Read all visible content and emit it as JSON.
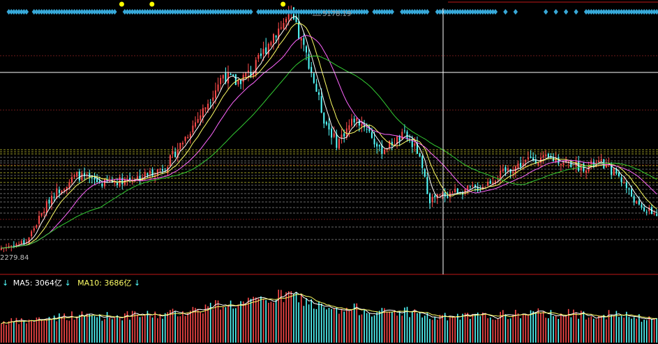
{
  "chart_data": {
    "type": "candlestick",
    "price_high_label": "5178.19",
    "price_low_label": "2279.84",
    "volume_legend": [
      {
        "label": "MA5: 3064亿",
        "color": "#ffffff"
      },
      {
        "label": "MA10: 3686亿",
        "color": "#ffff66"
      }
    ],
    "legend_arrow": "↓",
    "colors": {
      "up": "#ff4a4a",
      "down": "#54ffff",
      "ma5": "#ffffff",
      "ma10": "#ffff66",
      "ma20": "#ff66ff",
      "ma60": "#33cc33",
      "grid": "#6e1a1a",
      "hline_yellow": "#c8c832",
      "hline_gray": "#8a8a8a",
      "signal": "#37a8d8",
      "signal_yellow": "#ffff00",
      "crosshair": "#ffffff",
      "divider": "#c01818"
    },
    "ylim": [
      2250,
      5250
    ],
    "key_points": [
      {
        "t": 0,
        "p": 2300
      },
      {
        "t": 10,
        "p": 2380
      },
      {
        "t": 20,
        "p": 2950
      },
      {
        "t": 30,
        "p": 3200
      },
      {
        "t": 40,
        "p": 3100
      },
      {
        "t": 55,
        "p": 3180
      },
      {
        "t": 65,
        "p": 3300
      },
      {
        "t": 80,
        "p": 4000
      },
      {
        "t": 88,
        "p": 4450
      },
      {
        "t": 93,
        "p": 4350
      },
      {
        "t": 100,
        "p": 4500
      },
      {
        "t": 108,
        "p": 4950
      },
      {
        "t": 115,
        "p": 5178
      },
      {
        "t": 122,
        "p": 4600
      },
      {
        "t": 128,
        "p": 3900
      },
      {
        "t": 133,
        "p": 3600
      },
      {
        "t": 140,
        "p": 3900
      },
      {
        "t": 145,
        "p": 3800
      },
      {
        "t": 150,
        "p": 3500
      },
      {
        "t": 155,
        "p": 3600
      },
      {
        "t": 160,
        "p": 3700
      },
      {
        "t": 165,
        "p": 3500
      },
      {
        "t": 170,
        "p": 2900
      },
      {
        "t": 180,
        "p": 3000
      },
      {
        "t": 190,
        "p": 3050
      },
      {
        "t": 200,
        "p": 3250
      },
      {
        "t": 210,
        "p": 3400
      },
      {
        "t": 220,
        "p": 3400
      },
      {
        "t": 230,
        "p": 3300
      },
      {
        "t": 238,
        "p": 3350
      },
      {
        "t": 245,
        "p": 3200
      },
      {
        "t": 253,
        "p": 2800
      },
      {
        "t": 260,
        "p": 2720
      }
    ],
    "yellow_signals": [
      63,
      75,
      127
    ],
    "crosshair_x_index": 171
  }
}
